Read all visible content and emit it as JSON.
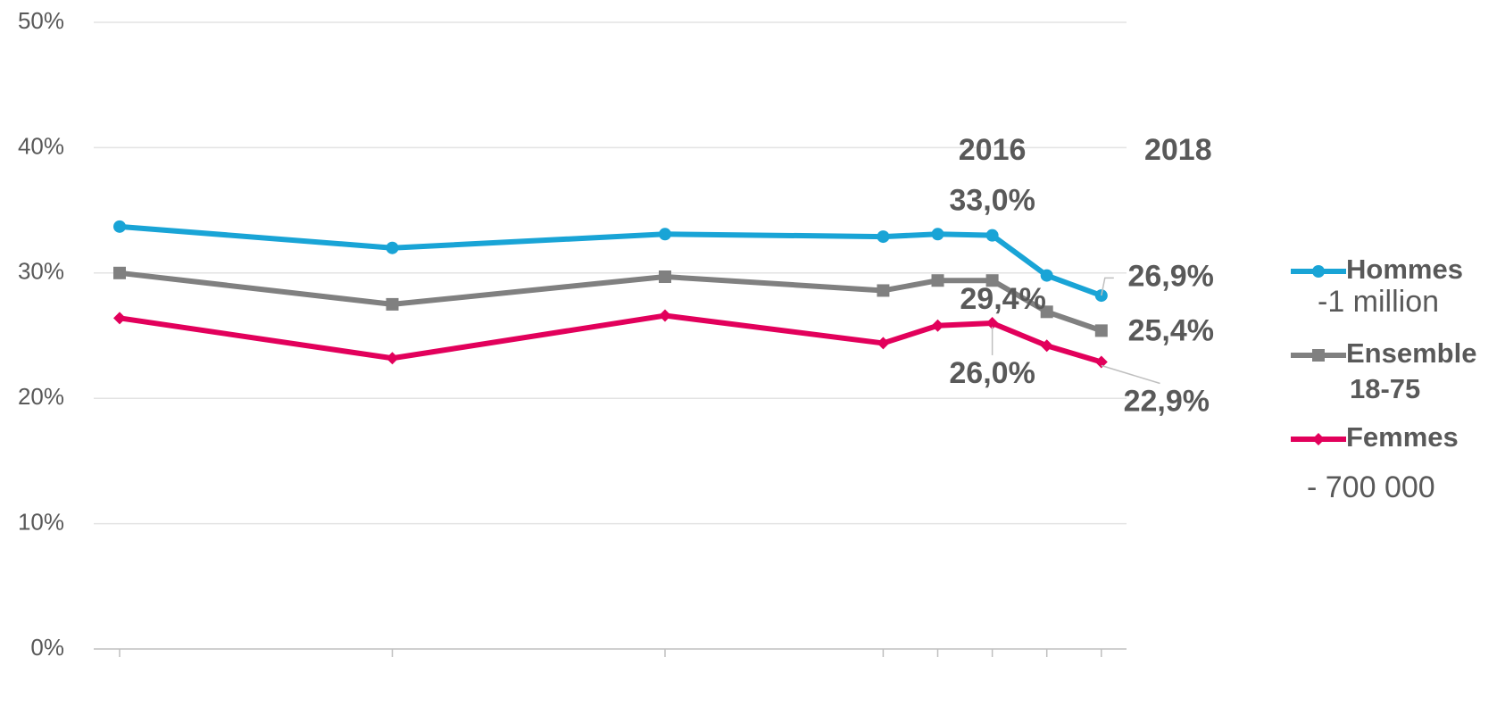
{
  "chart_data": {
    "type": "line",
    "categories": [
      null,
      null,
      null,
      null,
      null,
      "2016",
      null,
      "2018"
    ],
    "series": [
      {
        "name": "Hommes",
        "note": "-1 million",
        "color": "#19a4d6",
        "marker": "circle",
        "values": [
          33.7,
          32.0,
          33.1,
          32.9,
          33.1,
          33.0,
          29.8,
          28.2
        ],
        "value_labels": [
          null,
          null,
          null,
          null,
          null,
          "33,0%",
          null,
          null
        ]
      },
      {
        "name": "Ensemble 18-75",
        "color": "#808080",
        "marker": "square",
        "values": [
          30.0,
          27.5,
          29.7,
          28.6,
          29.4,
          29.4,
          26.9,
          25.4
        ],
        "value_labels": [
          null,
          null,
          null,
          null,
          null,
          "29,4%",
          "26,9%",
          "25,4%"
        ]
      },
      {
        "name": "Femmes",
        "note": "- 700 000",
        "color": "#e2005b",
        "marker": "diamond",
        "values": [
          26.4,
          23.2,
          26.6,
          24.4,
          25.8,
          26.0,
          24.2,
          22.9
        ],
        "value_labels": [
          null,
          null,
          null,
          null,
          null,
          "26,0%",
          null,
          "22,9%"
        ]
      }
    ],
    "ylim": [
      0,
      50
    ],
    "yticks": [
      {
        "value": 0,
        "label": "0%"
      },
      {
        "value": 10,
        "label": "10%"
      },
      {
        "value": 20,
        "label": "20%"
      },
      {
        "value": 30,
        "label": "30%"
      },
      {
        "value": 40,
        "label": "40%"
      },
      {
        "value": 50,
        "label": "50%"
      }
    ],
    "grid": true
  }
}
